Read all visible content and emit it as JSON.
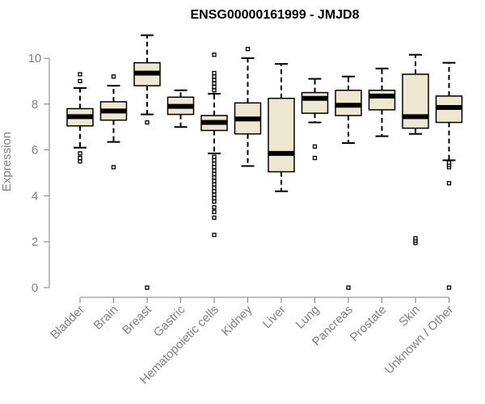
{
  "chart_data": {
    "type": "boxplot",
    "title": "ENSG00000161999 - JMJD8",
    "xlabel": "",
    "ylabel": "Expression",
    "ylim": [
      0,
      10.5
    ],
    "yticks": [
      "0",
      "2",
      "4",
      "6",
      "8",
      "10"
    ],
    "colors": {
      "box_fill": "#efe8d0",
      "stroke": "#000000",
      "axis": "#808080"
    },
    "categories": [
      "Bladder",
      "Brain",
      "Breast",
      "Gastric",
      "Hematopoietic cells",
      "Kidney",
      "Liver",
      "Lung",
      "Pancreas",
      "Prostate",
      "Skin",
      "Unknown / Other"
    ],
    "boxes": [
      {
        "name": "Bladder",
        "whisker_low": 6.1,
        "q1": 7.05,
        "median": 7.45,
        "q3": 7.8,
        "whisker_high": 8.7,
        "outliers": [
          5.5,
          5.65,
          5.85,
          9.0,
          9.3
        ]
      },
      {
        "name": "Brain",
        "whisker_low": 6.35,
        "q1": 7.3,
        "median": 7.7,
        "q3": 8.1,
        "whisker_high": 8.8,
        "outliers": [
          5.25,
          9.2
        ]
      },
      {
        "name": "Breast",
        "whisker_low": 7.55,
        "q1": 8.8,
        "median": 9.35,
        "q3": 9.8,
        "whisker_high": 11.0,
        "outliers": [
          0.0,
          7.2
        ]
      },
      {
        "name": "Gastric",
        "whisker_low": 7.0,
        "q1": 7.55,
        "median": 7.9,
        "q3": 8.3,
        "whisker_high": 8.6,
        "outliers": []
      },
      {
        "name": "Hematopoietic cells",
        "whisker_low": 5.85,
        "q1": 6.85,
        "median": 7.2,
        "q3": 7.5,
        "whisker_high": 8.45,
        "outliers": [
          2.3,
          3.05,
          3.3,
          3.5,
          3.75,
          3.9,
          4.05,
          4.2,
          4.35,
          4.5,
          4.65,
          4.8,
          4.95,
          5.1,
          5.25,
          5.4,
          5.55,
          5.7,
          8.6,
          8.75,
          8.9,
          9.05,
          9.2,
          9.35,
          10.15
        ]
      },
      {
        "name": "Kidney",
        "whisker_low": 5.3,
        "q1": 6.7,
        "median": 7.35,
        "q3": 8.05,
        "whisker_high": 10.0,
        "outliers": [
          10.4
        ]
      },
      {
        "name": "Liver",
        "whisker_low": 4.2,
        "q1": 5.05,
        "median": 5.85,
        "q3": 8.25,
        "whisker_high": 9.75,
        "outliers": []
      },
      {
        "name": "Lung",
        "whisker_low": 7.2,
        "q1": 7.6,
        "median": 8.25,
        "q3": 8.5,
        "whisker_high": 9.1,
        "outliers": [
          5.65,
          6.15
        ]
      },
      {
        "name": "Pancreas",
        "whisker_low": 6.3,
        "q1": 7.5,
        "median": 7.95,
        "q3": 8.6,
        "whisker_high": 9.2,
        "outliers": [
          0.0
        ]
      },
      {
        "name": "Prostate",
        "whisker_low": 6.6,
        "q1": 7.75,
        "median": 8.35,
        "q3": 8.6,
        "whisker_high": 9.55,
        "outliers": []
      },
      {
        "name": "Skin",
        "whisker_low": 6.7,
        "q1": 6.95,
        "median": 7.45,
        "q3": 9.3,
        "whisker_high": 10.15,
        "outliers": [
          1.95,
          2.05,
          2.15
        ]
      },
      {
        "name": "Unknown / Other",
        "whisker_low": 5.55,
        "q1": 7.2,
        "median": 7.85,
        "q3": 8.35,
        "whisker_high": 9.8,
        "outliers": [
          0.0,
          4.55,
          5.25,
          5.35,
          5.45
        ]
      }
    ]
  }
}
